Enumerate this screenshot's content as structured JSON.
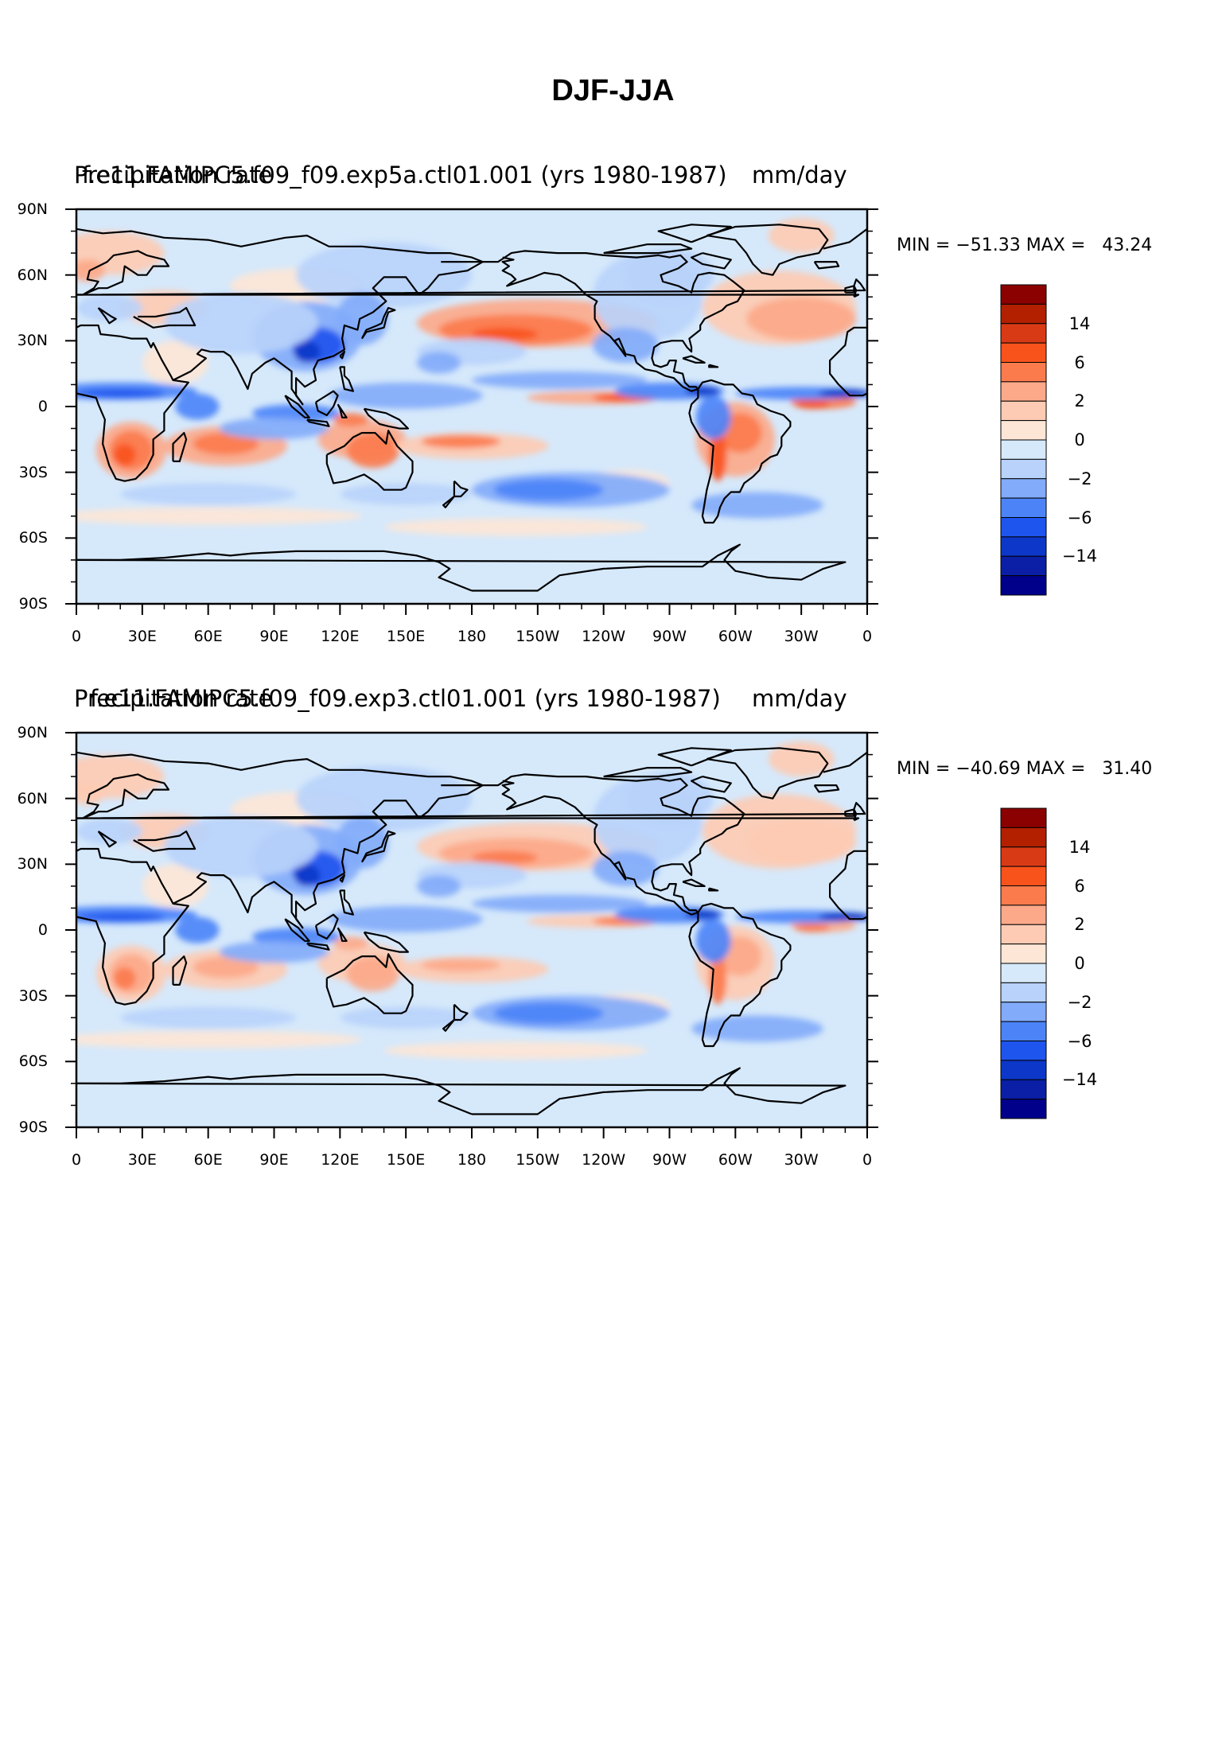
{
  "title": "DJF-JJA",
  "panels": [
    {
      "left_label": "f.e11.FAMIPC5.f09_f09.exp5a.ctl01.001 (yrs 1980-1987)",
      "center_label": "Precipitation rate",
      "right_label": "mm/day",
      "stats": "MIN = −51.33 MAX =   43.24"
    },
    {
      "left_label": "f.e11.FAMIPC5.f09_f09.exp3.ctl01.001 (yrs 1980-1987)",
      "center_label": "Precipitation rate",
      "right_label": "mm/day",
      "stats": "MIN = −40.69 MAX =   31.40"
    }
  ],
  "y_ticks": [
    "90N",
    "60N",
    "30N",
    "0",
    "30S",
    "60S",
    "90S"
  ],
  "x_ticks": [
    "0",
    "30E",
    "60E",
    "90E",
    "120E",
    "150E",
    "180",
    "150W",
    "120W",
    "90W",
    "60W",
    "30W",
    "0"
  ],
  "colorbar": {
    "labels": [
      "14",
      "6",
      "2",
      "0",
      "−2",
      "−6",
      "−14"
    ],
    "colors_top_to_bottom": [
      "#8b0000",
      "#b22000",
      "#d93a16",
      "#f9531c",
      "#fb7b4d",
      "#fca98a",
      "#fdcbb3",
      "#fde6d6",
      "#d6e9fb",
      "#b8d2fb",
      "#82abfa",
      "#4c84f8",
      "#1e55ef",
      "#0c37c8",
      "#0a1fa6",
      "#00008b"
    ]
  }
}
